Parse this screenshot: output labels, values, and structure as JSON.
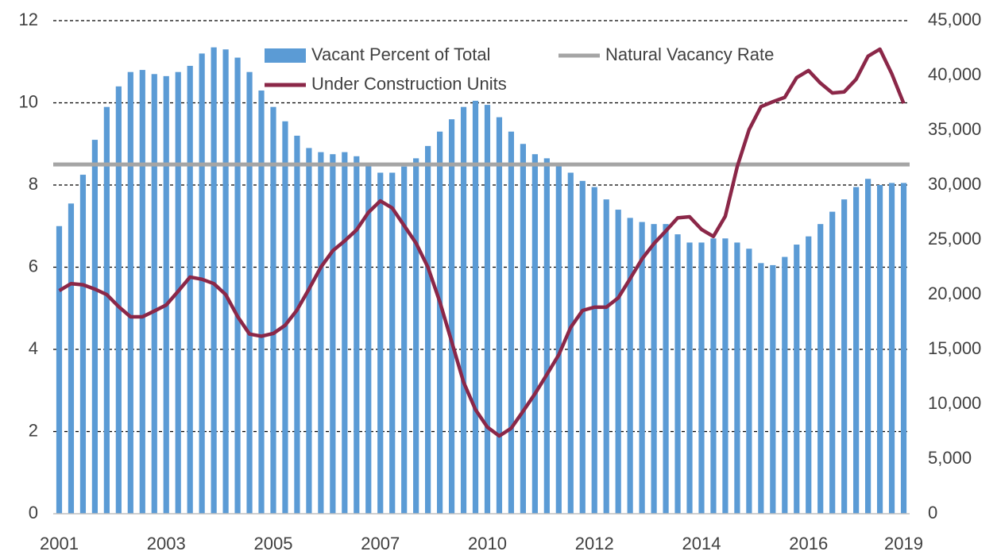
{
  "chart_data": {
    "type": "bar_line",
    "categories": [
      "2001",
      null,
      null,
      null,
      null,
      null,
      null,
      null,
      null,
      "2003",
      null,
      null,
      null,
      null,
      null,
      null,
      null,
      null,
      "2005",
      null,
      null,
      null,
      null,
      null,
      null,
      null,
      null,
      "2007",
      null,
      null,
      null,
      null,
      null,
      null,
      null,
      null,
      "2010",
      null,
      null,
      null,
      null,
      null,
      null,
      null,
      null,
      "2012",
      null,
      null,
      null,
      null,
      null,
      null,
      null,
      null,
      "2014",
      null,
      null,
      null,
      null,
      null,
      null,
      null,
      null,
      "2016",
      null,
      null,
      null,
      null,
      null,
      null,
      null,
      "2019"
    ],
    "series": [
      {
        "name": "Vacant Percent of Total",
        "kind": "bar",
        "color": "#5b9bd5",
        "axis": "y",
        "values": [
          7.0,
          7.55,
          8.25,
          9.1,
          9.9,
          10.4,
          10.75,
          10.8,
          10.7,
          10.65,
          10.75,
          10.9,
          11.2,
          11.35,
          11.3,
          11.1,
          10.75,
          10.3,
          9.9,
          9.55,
          9.2,
          8.9,
          8.8,
          8.75,
          8.8,
          8.7,
          8.5,
          8.3,
          8.3,
          8.45,
          8.65,
          8.95,
          9.3,
          9.6,
          9.9,
          10.05,
          9.95,
          9.65,
          9.3,
          9.0,
          8.75,
          8.65,
          8.5,
          8.3,
          8.1,
          7.95,
          7.65,
          7.4,
          7.2,
          7.1,
          7.05,
          7.05,
          6.8,
          6.6,
          6.6,
          6.7,
          6.7,
          6.6,
          6.45,
          6.1,
          6.05,
          6.25,
          6.55,
          6.75,
          7.05,
          7.35,
          7.65,
          7.95,
          8.15,
          8.0,
          8.05,
          8.05
        ]
      },
      {
        "name": "Natural Vacancy Rate",
        "kind": "hline",
        "color": "#a5a5a5",
        "axis": "y",
        "value": 8.5
      },
      {
        "name": "Under Construction Units",
        "kind": "line",
        "color": "#8b2748",
        "axis": "y2",
        "values": [
          20360,
          21000,
          20900,
          20500,
          20000,
          18900,
          17970,
          17970,
          18500,
          19050,
          20300,
          21600,
          21400,
          21000,
          20000,
          18000,
          16400,
          16200,
          16450,
          17200,
          18600,
          20500,
          22500,
          24000,
          24900,
          25900,
          27500,
          28550,
          27900,
          26300,
          24700,
          22500,
          19350,
          15700,
          12000,
          9500,
          7900,
          7100,
          7800,
          9350,
          10950,
          12700,
          14500,
          17000,
          18550,
          18850,
          18850,
          19700,
          21450,
          23250,
          24650,
          25800,
          27000,
          27100,
          25950,
          25300,
          27150,
          31650,
          35050,
          37150,
          37600,
          38000,
          39800,
          40450,
          39300,
          38400,
          38500,
          39650,
          41750,
          42400,
          40150,
          37450
        ]
      }
    ],
    "ylim": [
      0,
      12
    ],
    "yticks": [
      0,
      2,
      4,
      6,
      8,
      10,
      12
    ],
    "y2lim": [
      0,
      45000
    ],
    "y2ticks": [
      0,
      {
        "value": 5000,
        "label": "5,000"
      },
      {
        "value": 10000,
        "label": "10,000"
      },
      {
        "value": 15000,
        "label": "15,000"
      },
      {
        "value": 20000,
        "label": "20,000"
      },
      {
        "value": 25000,
        "label": "25,000"
      },
      {
        "value": 30000,
        "label": "30,000"
      },
      {
        "value": 35000,
        "label": "35,000"
      },
      {
        "value": 40000,
        "label": "40,000"
      },
      {
        "value": 45000,
        "label": "45,000"
      }
    ],
    "grid": true
  }
}
